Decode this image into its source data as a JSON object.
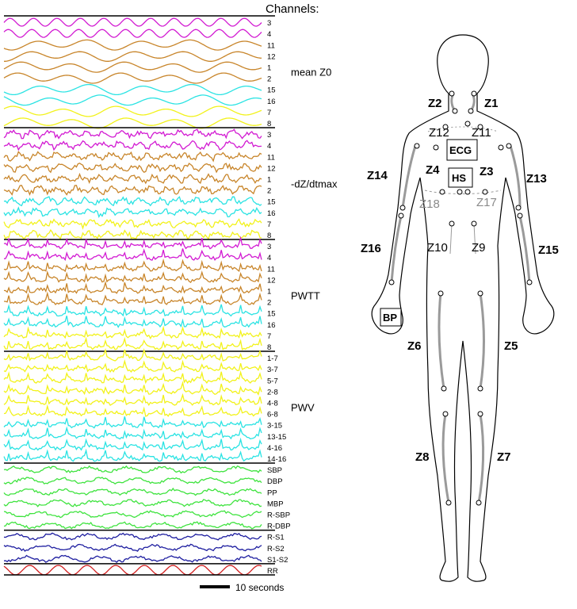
{
  "title": "Channels:",
  "scale_bar": "10 seconds",
  "colors": {
    "magenta": "#d21ad2",
    "brown": "#c8852a",
    "cyan": "#2ae3e3",
    "yellow": "#f2f21a",
    "green": "#3ee33e",
    "blue": "#1e1ea0",
    "red": "#d22020"
  },
  "groups": [
    {
      "label": "mean Z0",
      "style": "smooth",
      "channels": [
        {
          "name": "3",
          "color": "magenta"
        },
        {
          "name": "4",
          "color": "magenta"
        },
        {
          "name": "11",
          "color": "brown"
        },
        {
          "name": "12",
          "color": "brown"
        },
        {
          "name": "1",
          "color": "brown"
        },
        {
          "name": "2",
          "color": "brown"
        },
        {
          "name": "15",
          "color": "cyan"
        },
        {
          "name": "16",
          "color": "cyan"
        },
        {
          "name": "7",
          "color": "yellow"
        },
        {
          "name": "8",
          "color": "yellow"
        }
      ]
    },
    {
      "label": "-dZ/dtmax",
      "style": "jagged",
      "channels": [
        {
          "name": "3",
          "color": "magenta"
        },
        {
          "name": "4",
          "color": "magenta"
        },
        {
          "name": "11",
          "color": "brown"
        },
        {
          "name": "12",
          "color": "brown"
        },
        {
          "name": "1",
          "color": "brown"
        },
        {
          "name": "2",
          "color": "brown"
        },
        {
          "name": "15",
          "color": "cyan"
        },
        {
          "name": "16",
          "color": "cyan"
        },
        {
          "name": "7",
          "color": "yellow"
        },
        {
          "name": "8",
          "color": "yellow"
        }
      ]
    },
    {
      "label": "PWTT",
      "style": "spiky",
      "channels": [
        {
          "name": "3",
          "color": "magenta"
        },
        {
          "name": "4",
          "color": "magenta"
        },
        {
          "name": "11",
          "color": "brown"
        },
        {
          "name": "12",
          "color": "brown"
        },
        {
          "name": "1",
          "color": "brown"
        },
        {
          "name": "2",
          "color": "brown"
        },
        {
          "name": "15",
          "color": "cyan"
        },
        {
          "name": "16",
          "color": "cyan"
        },
        {
          "name": "7",
          "color": "yellow"
        },
        {
          "name": "8",
          "color": "yellow"
        }
      ]
    },
    {
      "label": "PWV",
      "style": "spiky",
      "channels": [
        {
          "name": "1-7",
          "color": "yellow"
        },
        {
          "name": "3-7",
          "color": "yellow"
        },
        {
          "name": "5-7",
          "color": "yellow"
        },
        {
          "name": "2-8",
          "color": "yellow"
        },
        {
          "name": "4-8",
          "color": "yellow"
        },
        {
          "name": "6-8",
          "color": "yellow"
        },
        {
          "name": "3-15",
          "color": "cyan"
        },
        {
          "name": "13-15",
          "color": "cyan"
        },
        {
          "name": "4-16",
          "color": "cyan"
        },
        {
          "name": "14-16",
          "color": "cyan"
        }
      ]
    },
    {
      "label": "",
      "style": "wavy",
      "channels": [
        {
          "name": "SBP",
          "color": "green"
        },
        {
          "name": "DBP",
          "color": "green"
        },
        {
          "name": "PP",
          "color": "green"
        },
        {
          "name": "MBP",
          "color": "green"
        },
        {
          "name": "R-SBP",
          "color": "green"
        },
        {
          "name": "R-DBP",
          "color": "green"
        }
      ]
    },
    {
      "label": "",
      "style": "wavy",
      "channels": [
        {
          "name": "R-S1",
          "color": "blue"
        },
        {
          "name": "R-S2",
          "color": "blue"
        },
        {
          "name": "S1-S2",
          "color": "blue"
        }
      ]
    },
    {
      "label": "",
      "style": "sine",
      "channels": [
        {
          "name": "RR",
          "color": "red"
        }
      ]
    }
  ],
  "sensors": {
    "black_labels": [
      "Z1",
      "Z2",
      "Z3",
      "Z4",
      "Z5",
      "Z6",
      "Z7",
      "Z8",
      "Z13",
      "Z14",
      "Z15",
      "Z16"
    ],
    "plain_labels": [
      "Z9",
      "Z10",
      "Z11",
      "Z12"
    ],
    "grey_labels": [
      "Z17",
      "Z18"
    ],
    "boxes": [
      "ECG",
      "HS",
      "BP"
    ]
  }
}
